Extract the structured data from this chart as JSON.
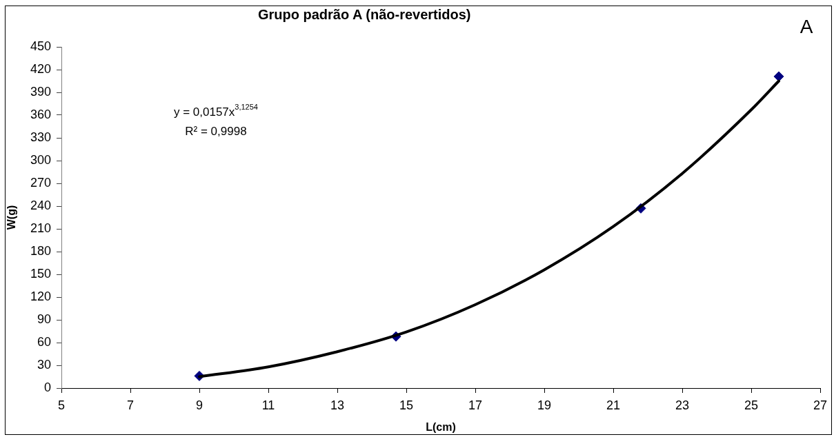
{
  "chart_data": {
    "type": "scatter",
    "title": "Grupo padrão A (não-revertidos)",
    "xlabel": "L(cm)",
    "ylabel": "W(g)",
    "annotations": [
      "y = 0,0157x$^{3,1254}$",
      "R² = 0,9998",
      "A"
    ],
    "series": [
      {
        "color": "#000080",
        "marker": "diamond",
        "x": [
          9.0,
          14.7,
          21.8,
          25.8
        ],
        "values": [
          16,
          68,
          237,
          411
        ]
      },
      {
        "type": "line",
        "color": "#000000",
        "marker": "none",
        "line_style": "solid",
        "x": [
          9,
          11,
          13,
          15,
          17,
          19,
          21,
          23,
          25,
          25.8
        ],
        "values": [
          15,
          28,
          48,
          74,
          110,
          156,
          213,
          283,
          367,
          405
        ]
      }
    ],
    "xlim": [
      5,
      27
    ],
    "xticks": [
      5,
      7,
      9,
      11,
      13,
      15,
      17,
      19,
      21,
      23,
      25,
      27
    ],
    "ylim": [
      0,
      450
    ],
    "yticks": [
      0,
      30,
      60,
      90,
      120,
      150,
      180,
      210,
      240,
      270,
      300,
      330,
      360,
      390,
      420,
      450
    ]
  }
}
